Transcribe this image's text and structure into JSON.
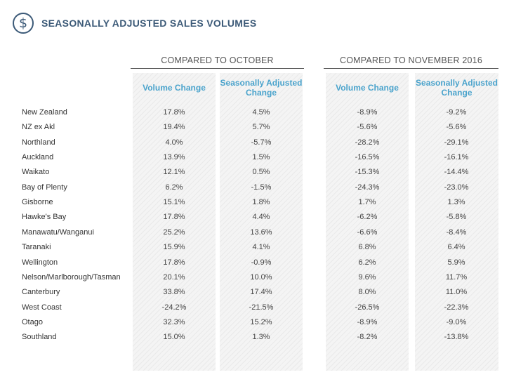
{
  "title": "SEASONALLY ADJUSTED SALES VOLUMES",
  "icon": "dollar-circle-icon",
  "colors": {
    "title": "#3c5a78",
    "column_header": "#4aa3cc"
  },
  "groups": [
    {
      "label": "COMPARED TO OCTOBER"
    },
    {
      "label": "COMPARED TO NOVEMBER 2016"
    }
  ],
  "columns": [
    {
      "label": "Volume Change"
    },
    {
      "label": "Seasonally Adjusted Change"
    },
    {
      "label": "Volume Change"
    },
    {
      "label": "Seasonally Adjusted Change"
    }
  ],
  "rows": [
    {
      "region": "New Zealand",
      "values": [
        "17.8%",
        "4.5%",
        "-8.9%",
        "-9.2%"
      ]
    },
    {
      "region": "NZ ex Akl",
      "values": [
        "19.4%",
        "5.7%",
        "-5.6%",
        "-5.6%"
      ]
    },
    {
      "region": "Northland",
      "values": [
        "4.0%",
        "-5.7%",
        "-28.2%",
        "-29.1%"
      ]
    },
    {
      "region": "Auckland",
      "values": [
        "13.9%",
        "1.5%",
        "-16.5%",
        "-16.1%"
      ]
    },
    {
      "region": "Waikato",
      "values": [
        "12.1%",
        "0.5%",
        "-15.3%",
        "-14.4%"
      ]
    },
    {
      "region": "Bay of Plenty",
      "values": [
        "6.2%",
        "-1.5%",
        "-24.3%",
        "-23.0%"
      ]
    },
    {
      "region": "Gisborne",
      "values": [
        "15.1%",
        "1.8%",
        "1.7%",
        "1.3%"
      ]
    },
    {
      "region": "Hawke's Bay",
      "values": [
        "17.8%",
        "4.4%",
        "-6.2%",
        "-5.8%"
      ]
    },
    {
      "region": "Manawatu/Wanganui",
      "values": [
        "25.2%",
        "13.6%",
        "-6.6%",
        "-8.4%"
      ]
    },
    {
      "region": "Taranaki",
      "values": [
        "15.9%",
        "4.1%",
        "6.8%",
        "6.4%"
      ]
    },
    {
      "region": "Wellington",
      "values": [
        "17.8%",
        "-0.9%",
        "6.2%",
        "5.9%"
      ]
    },
    {
      "region": "Nelson/Marlborough/Tasman",
      "values": [
        "20.1%",
        "10.0%",
        "9.6%",
        "11.7%"
      ]
    },
    {
      "region": "Canterbury",
      "values": [
        "33.8%",
        "17.4%",
        "8.0%",
        "11.0%"
      ]
    },
    {
      "region": "West Coast",
      "values": [
        "-24.2%",
        "-21.5%",
        "-26.5%",
        "-22.3%"
      ]
    },
    {
      "region": "Otago",
      "values": [
        "32.3%",
        "15.2%",
        "-8.9%",
        "-9.0%"
      ]
    },
    {
      "region": "Southland",
      "values": [
        "15.0%",
        "1.3%",
        "-8.2%",
        "-13.8%"
      ]
    }
  ]
}
